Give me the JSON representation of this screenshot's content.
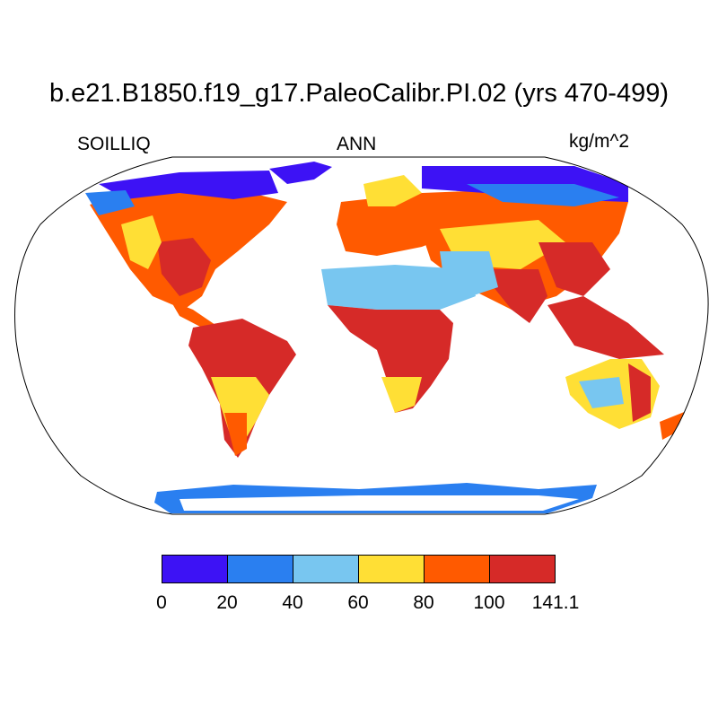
{
  "title": "b.e21.B1850.f19_g17.PaleoCalibr.PI.02 (yrs 470-499)",
  "variable": "SOILLIQ",
  "season": "ANN",
  "units": "kg/m^2",
  "colorbar": {
    "colors": [
      "#3d12f5",
      "#2a7ff0",
      "#78c6f0",
      "#ffdf35",
      "#ff5a00",
      "#d62a28"
    ],
    "labels": [
      "0",
      "20",
      "40",
      "60",
      "80",
      "100",
      "141.1"
    ]
  }
}
